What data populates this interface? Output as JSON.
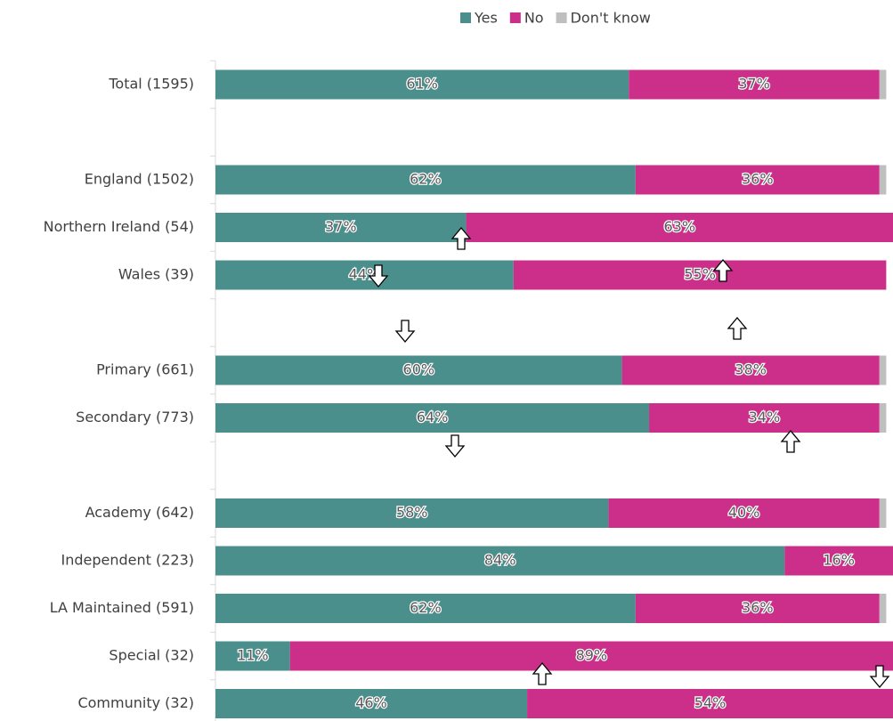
{
  "chart_data": {
    "type": "stacked-bar-horizontal",
    "categories": [
      "Total (1595)",
      null,
      "England (1502)",
      "Northern Ireland (54)",
      "Wales (39)",
      null,
      "Primary (661)",
      "Secondary (773)",
      null,
      "Academy (642)",
      "Independent (223)",
      "LA Maintained (591)",
      "Special (32)",
      "Community (32)"
    ],
    "xlim": [
      0,
      100
    ],
    "legend": "top",
    "series": [
      {
        "name": "Yes",
        "color": "#4a8f8c",
        "values": [
          61,
          null,
          62,
          37,
          44,
          null,
          60,
          64,
          null,
          58,
          84,
          62,
          11,
          46
        ],
        "value_labels": [
          "61%",
          null,
          "62%",
          "37%",
          "44%",
          null,
          "60%",
          "64%",
          null,
          "58%",
          "84%",
          "62%",
          "11%",
          "46%"
        ]
      },
      {
        "name": "No",
        "color": "#cc2f89",
        "values": [
          37,
          null,
          36,
          63,
          55,
          null,
          38,
          34,
          null,
          40,
          16,
          36,
          89,
          54
        ],
        "value_labels": [
          "37%",
          null,
          "36%",
          "63%",
          "55%",
          null,
          "38%",
          "34%",
          null,
          "40%",
          "16%",
          "36%",
          "89%",
          "54%"
        ]
      },
      {
        "name": "Don't know",
        "color": "#bfbfbf",
        "values": [
          1,
          null,
          1,
          0,
          0,
          null,
          1,
          1,
          null,
          1,
          0,
          1,
          0,
          0
        ]
      }
    ]
  }
}
